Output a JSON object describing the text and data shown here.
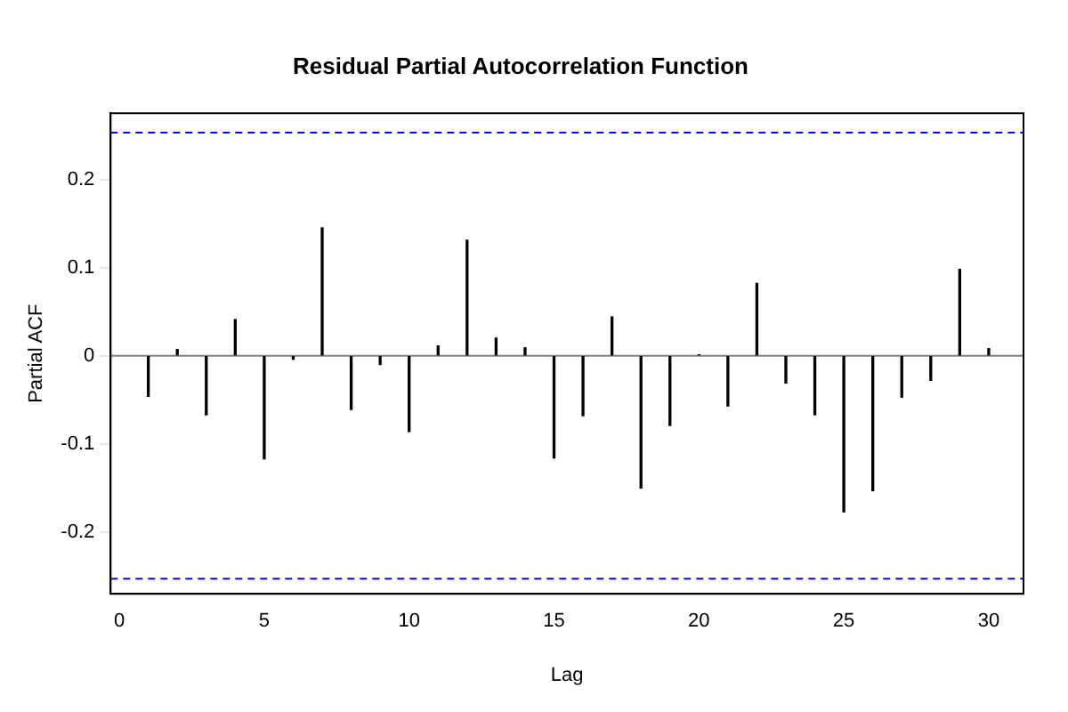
{
  "chart_data": {
    "type": "bar",
    "title": "Residual Partial Autocorrelation Function",
    "xlabel": "Lag",
    "ylabel": "Partial ACF",
    "x": [
      1,
      2,
      3,
      4,
      5,
      6,
      7,
      8,
      9,
      10,
      11,
      12,
      13,
      14,
      15,
      16,
      17,
      18,
      19,
      20,
      21,
      22,
      23,
      24,
      25,
      26,
      27,
      28,
      29,
      30
    ],
    "values": [
      -0.046,
      0.007,
      -0.067,
      0.041,
      -0.117,
      -0.004,
      0.145,
      -0.061,
      -0.01,
      -0.086,
      0.011,
      0.131,
      0.02,
      0.009,
      -0.116,
      -0.068,
      0.044,
      -0.15,
      -0.079,
      0.001,
      -0.057,
      0.082,
      -0.031,
      -0.067,
      -0.177,
      -0.153,
      -0.047,
      -0.028,
      0.098,
      0.008
    ],
    "color": "#000000",
    "xlim": [
      -0.3,
      31.2
    ],
    "xticks": [
      0,
      5,
      10,
      15,
      20,
      25,
      30
    ],
    "ylim": [
      -0.27,
      0.275
    ],
    "yticks": [
      -0.2,
      -0.1,
      0.0,
      0.1,
      0.2
    ],
    "ref_lines": [
      {
        "axis": "y",
        "value": 0.253,
        "color": "#0000ff",
        "line_style": "dashed"
      },
      {
        "axis": "y",
        "value": -0.253,
        "color": "#0000ff",
        "line_style": "dashed"
      },
      {
        "axis": "y",
        "value": 0,
        "color": "#808080",
        "line_style": "solid"
      }
    ],
    "grid": false,
    "legend": false
  }
}
